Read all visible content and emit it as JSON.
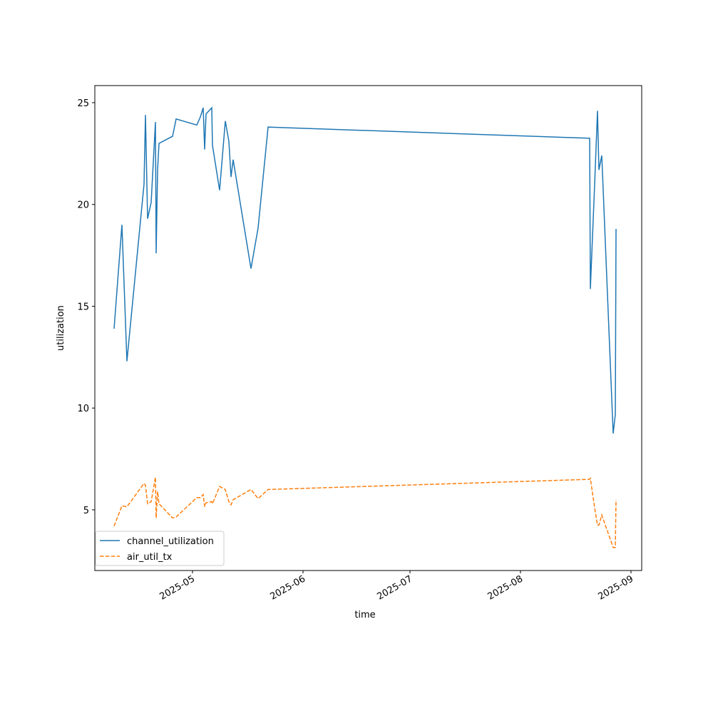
{
  "chart_data": {
    "type": "line",
    "xlabel": "time",
    "ylabel": "utilization",
    "x": [
      99,
      101.2,
      102.6,
      107.4,
      107.8,
      108.4,
      109.4,
      110.6,
      110.8,
      111.2,
      111.6,
      115.4,
      116.4,
      122.2,
      123.2,
      124,
      124.4,
      124.8,
      126.4,
      126.6,
      128.6,
      130.2,
      131.2,
      131.8,
      132.4,
      137.4,
      139.4,
      142.2,
      232.4,
      232.6,
      233.8,
      234.6,
      235,
      235.8,
      239,
      239.6,
      239.8
    ],
    "series": [
      {
        "name": "channel_utilization",
        "color": "#1f77b4",
        "linestyle": "solid",
        "values": [
          13.9,
          19.0,
          12.3,
          21.0,
          24.4,
          19.3,
          20.1,
          24.05,
          17.6,
          21.7,
          23.0,
          23.35,
          24.2,
          23.9,
          24.3,
          24.75,
          22.7,
          24.45,
          24.75,
          22.9,
          20.7,
          24.1,
          23.1,
          21.35,
          22.2,
          16.85,
          18.85,
          23.8,
          23.25,
          15.85,
          21.0,
          24.6,
          21.7,
          22.4,
          8.75,
          9.7,
          18.8
        ]
      },
      {
        "name": "air_util_tx",
        "color": "#ff7f0e",
        "linestyle": "dashed",
        "values": [
          4.2,
          5.2,
          5.15,
          6.3,
          6.2,
          5.3,
          5.4,
          6.6,
          4.6,
          5.9,
          5.3,
          4.6,
          4.65,
          5.6,
          5.6,
          5.75,
          5.15,
          5.35,
          5.4,
          5.3,
          6.15,
          6.0,
          5.4,
          5.25,
          5.5,
          6.0,
          5.55,
          6.0,
          6.5,
          6.55,
          5.1,
          4.25,
          4.25,
          4.75,
          3.15,
          3.15,
          5.5
        ]
      }
    ],
    "xlim": [
      93.6,
      247
    ],
    "xticks": [
      {
        "value": 121,
        "label": "2025-05"
      },
      {
        "value": 152,
        "label": "2025-06"
      },
      {
        "value": 182,
        "label": "2025-07"
      },
      {
        "value": 213,
        "label": "2025-08"
      },
      {
        "value": 244,
        "label": "2025-09"
      }
    ],
    "ylim": [
      2.02,
      25.84
    ],
    "yticks": [
      5,
      10,
      15,
      20,
      25
    ],
    "grid": false,
    "legend": "lower left"
  }
}
